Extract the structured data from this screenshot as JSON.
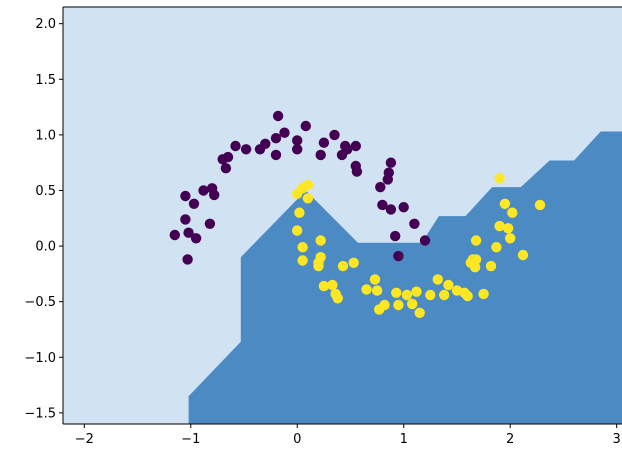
{
  "chart_data": {
    "type": "scatter",
    "title": "",
    "xlabel": "",
    "ylabel": "",
    "xlim": [
      -2.2,
      3.05
    ],
    "ylim": [
      -1.6,
      2.15
    ],
    "grid": false,
    "x_ticks": [
      -2,
      -1,
      0,
      1,
      2,
      3
    ],
    "x_tick_labels": [
      "−2",
      "−1",
      "0",
      "1",
      "2",
      "3"
    ],
    "y_ticks": [
      -1.5,
      -1.0,
      -0.5,
      0.0,
      0.5,
      1.0,
      1.5,
      2.0
    ],
    "y_tick_labels": [
      "−1.5",
      "−1.0",
      "−0.5",
      "0.0",
      "0.5",
      "1.0",
      "1.5",
      "2.0"
    ],
    "decision_regions": [
      {
        "class": 0,
        "color": "#d1e2f2"
      },
      {
        "class": 1,
        "color": "#4b8ac2",
        "boundary": [
          [
            -1.02,
            -1.6
          ],
          [
            -1.02,
            -1.35
          ],
          [
            -0.53,
            -0.86
          ],
          [
            -0.53,
            -0.1
          ],
          [
            0.08,
            0.5
          ],
          [
            0.57,
            0.03
          ],
          [
            1.17,
            0.03
          ],
          [
            1.33,
            0.27
          ],
          [
            1.58,
            0.27
          ],
          [
            1.83,
            0.53
          ],
          [
            2.1,
            0.53
          ],
          [
            2.37,
            0.77
          ],
          [
            2.6,
            0.77
          ],
          [
            2.85,
            1.03
          ],
          [
            3.05,
            1.03
          ],
          [
            3.05,
            -1.6
          ]
        ]
      }
    ],
    "series": [
      {
        "class": 0,
        "color": "#440154",
        "points": [
          [
            -1.15,
            0.1
          ],
          [
            -1.02,
            0.12
          ],
          [
            -0.95,
            0.07
          ],
          [
            -1.03,
            -0.12
          ],
          [
            -1.05,
            0.24
          ],
          [
            -1.05,
            0.45
          ],
          [
            -0.97,
            0.38
          ],
          [
            -0.88,
            0.5
          ],
          [
            -0.82,
            0.2
          ],
          [
            -0.78,
            0.46
          ],
          [
            -0.8,
            0.52
          ],
          [
            -0.7,
            0.78
          ],
          [
            -0.67,
            0.7
          ],
          [
            -0.65,
            0.8
          ],
          [
            -0.58,
            0.9
          ],
          [
            -0.48,
            0.87
          ],
          [
            -0.35,
            0.87
          ],
          [
            -0.3,
            0.92
          ],
          [
            -0.2,
            0.82
          ],
          [
            -0.2,
            0.97
          ],
          [
            -0.12,
            1.02
          ],
          [
            -0.18,
            1.17
          ],
          [
            0.0,
            0.87
          ],
          [
            0.0,
            0.95
          ],
          [
            0.08,
            1.08
          ],
          [
            0.22,
            0.82
          ],
          [
            0.25,
            0.93
          ],
          [
            0.35,
            1.0
          ],
          [
            0.42,
            0.82
          ],
          [
            0.45,
            0.9
          ],
          [
            0.47,
            0.87
          ],
          [
            0.55,
            0.9
          ],
          [
            0.55,
            0.72
          ],
          [
            0.56,
            0.67
          ],
          [
            0.78,
            0.53
          ],
          [
            0.85,
            0.6
          ],
          [
            0.86,
            0.66
          ],
          [
            0.88,
            0.75
          ],
          [
            0.8,
            0.37
          ],
          [
            0.88,
            0.33
          ],
          [
            0.92,
            0.09
          ],
          [
            1.0,
            0.35
          ],
          [
            1.1,
            0.2
          ],
          [
            1.2,
            0.05
          ],
          [
            0.95,
            -0.09
          ]
        ]
      },
      {
        "class": 1,
        "color": "#fde725",
        "points": [
          [
            0.0,
            0.47
          ],
          [
            0.05,
            0.52
          ],
          [
            0.1,
            0.55
          ],
          [
            0.1,
            0.43
          ],
          [
            0.02,
            0.3
          ],
          [
            0.0,
            0.14
          ],
          [
            0.05,
            -0.01
          ],
          [
            0.05,
            -0.13
          ],
          [
            0.22,
            0.05
          ],
          [
            0.22,
            -0.1
          ],
          [
            0.2,
            -0.15
          ],
          [
            0.2,
            -0.18
          ],
          [
            0.25,
            -0.36
          ],
          [
            0.33,
            -0.35
          ],
          [
            0.36,
            -0.43
          ],
          [
            0.38,
            -0.47
          ],
          [
            0.43,
            -0.18
          ],
          [
            0.53,
            -0.15
          ],
          [
            0.65,
            -0.39
          ],
          [
            0.73,
            -0.3
          ],
          [
            0.75,
            -0.4
          ],
          [
            0.77,
            -0.57
          ],
          [
            0.82,
            -0.53
          ],
          [
            0.93,
            -0.42
          ],
          [
            0.95,
            -0.53
          ],
          [
            1.03,
            -0.44
          ],
          [
            1.08,
            -0.52
          ],
          [
            1.12,
            -0.41
          ],
          [
            1.15,
            -0.6
          ],
          [
            1.25,
            -0.44
          ],
          [
            1.32,
            -0.3
          ],
          [
            1.38,
            -0.44
          ],
          [
            1.42,
            -0.35
          ],
          [
            1.5,
            -0.4
          ],
          [
            1.57,
            -0.42
          ],
          [
            1.6,
            -0.45
          ],
          [
            1.63,
            -0.15
          ],
          [
            1.65,
            -0.12
          ],
          [
            1.68,
            -0.12
          ],
          [
            1.68,
            0.05
          ],
          [
            1.67,
            -0.19
          ],
          [
            1.75,
            -0.43
          ],
          [
            1.82,
            -0.18
          ],
          [
            1.87,
            -0.01
          ],
          [
            1.9,
            0.18
          ],
          [
            1.95,
            0.38
          ],
          [
            1.9,
            0.61
          ],
          [
            1.98,
            0.16
          ],
          [
            2.0,
            0.07
          ],
          [
            2.02,
            0.3
          ],
          [
            2.12,
            -0.08
          ],
          [
            2.28,
            0.37
          ]
        ]
      }
    ]
  }
}
